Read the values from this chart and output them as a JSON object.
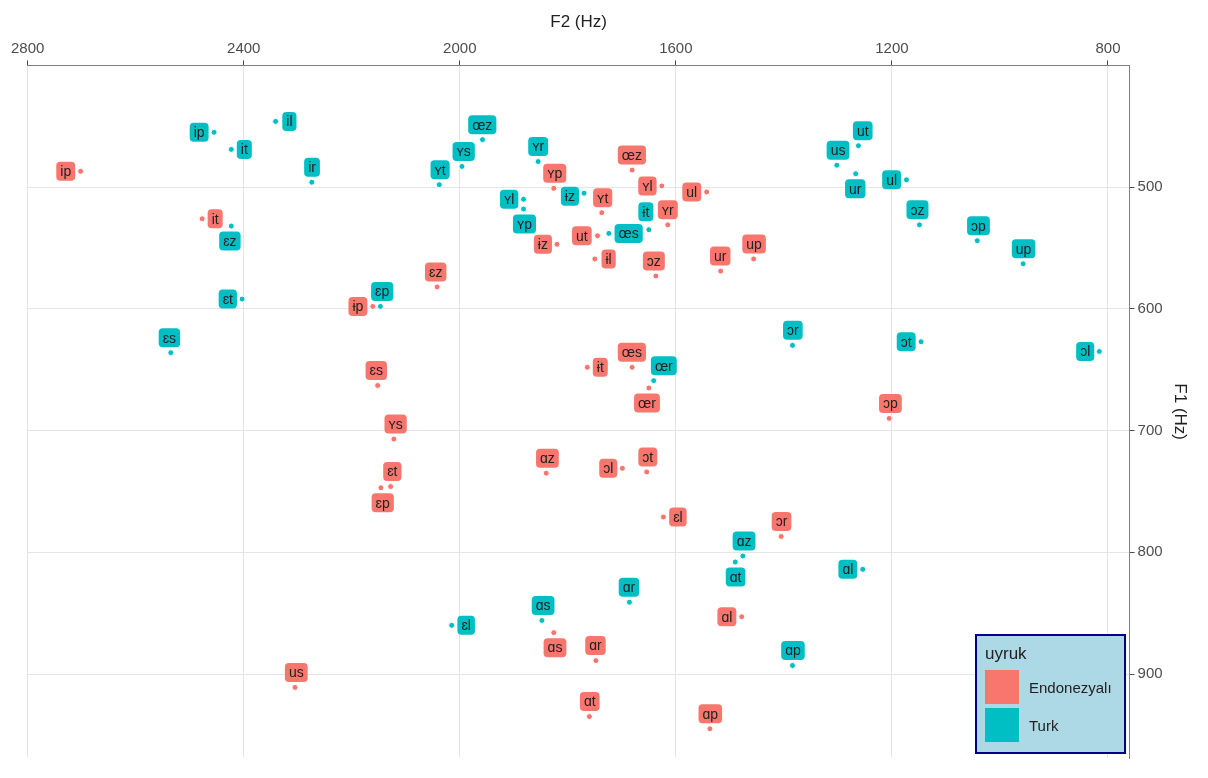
{
  "chart_data": {
    "type": "scatter",
    "xlabel": "F2 (Hz)",
    "ylabel": "F1 (Hz)",
    "legend_title": "uyruk",
    "legend": "bottom right",
    "grid": true,
    "marker": "circle",
    "xlim": [
      2800,
      760
    ],
    "xticks": [
      2800,
      2400,
      2000,
      1600,
      1200,
      800
    ],
    "ylim": [
      969,
      400
    ],
    "yticks": [
      500,
      600,
      700,
      800,
      900
    ],
    "series": [
      {
        "name": "Endonezyalı",
        "color": "#f8766d",
        "x": [
          2702,
          2477,
          2042,
          2161,
          2152,
          2122,
          2146,
          2128,
          1840,
          1826,
          1748,
          1760,
          2305,
          1537,
          1478,
          1405,
          1623,
          1699,
          1654,
          1764,
          1681,
          1650,
          1205,
          1637,
          1517,
          1456,
          1543,
          1626,
          1615,
          1681,
          1826,
          1737,
          1745,
          1820,
          1750
        ],
        "values": [
          487,
          526,
          582,
          598,
          663,
          707,
          747,
          746,
          735,
          866,
          889,
          935,
          911,
          945,
          853,
          787,
          771,
          731,
          734,
          648,
          648,
          665,
          690,
          573,
          569,
          559,
          504,
          499,
          531,
          486,
          501,
          521,
          540,
          547,
          559
        ],
        "value_labels": [
          "ip",
          "it",
          "ɛz",
          "ɨp",
          "ɛs",
          "ʏs",
          "ɛp",
          "ɛt",
          "ɑz",
          "ɑs",
          "ɑr",
          "ɑt",
          "us",
          "ɑp",
          "ɑl",
          "ɔr",
          "ɛl",
          "ɔl",
          "ɔt",
          "ɨt",
          "œs",
          "œr",
          "ɔp",
          "ɔz",
          "ur",
          "up",
          "ul",
          "ʏl",
          "ʏr",
          "œz",
          "ʏp",
          "ʏt",
          "ut",
          "ɨz",
          "ɨl"
        ]
      },
      {
        "name": "Turk",
        "color": "#00bfc4",
        "x": [
          2341,
          2455,
          2423,
          2274,
          2423,
          2403,
          2535,
          2147,
          1958,
          1996,
          2038,
          1855,
          1882,
          1882,
          1770,
          1724,
          1650,
          1302,
          1262,
          1267,
          1173,
          1149,
          1042,
          957,
          1384,
          1146,
          816,
          1641,
          1490,
          1476,
          1254,
          1686,
          1848,
          2015,
          1384
        ],
        "values": [
          446,
          455,
          469,
          496,
          532,
          592,
          636,
          598,
          461,
          483,
          498,
          479,
          510,
          518,
          505,
          538,
          535,
          482,
          466,
          489,
          494,
          531,
          544,
          563,
          630,
          627,
          635,
          659,
          808,
          803,
          814,
          841,
          856,
          860,
          893
        ],
        "value_labels": [
          "il",
          "ip",
          "it",
          "ir",
          "ɛz",
          "ɛt",
          "ɛs",
          "ɛp",
          "œz",
          "ʏs",
          "ʏt",
          "ʏr",
          "ʏl",
          "ʏp",
          "ɨz",
          "œs",
          "ɨt",
          "us",
          "ut",
          "ur",
          "ul",
          "ɔz",
          "ɔp",
          "up",
          "ɔr",
          "ɔt",
          "ɔl",
          "œr",
          "ɑt",
          "ɑz",
          "ɑl",
          "ɑr",
          "ɑs",
          "ɛl",
          "ɑp"
        ]
      }
    ]
  }
}
